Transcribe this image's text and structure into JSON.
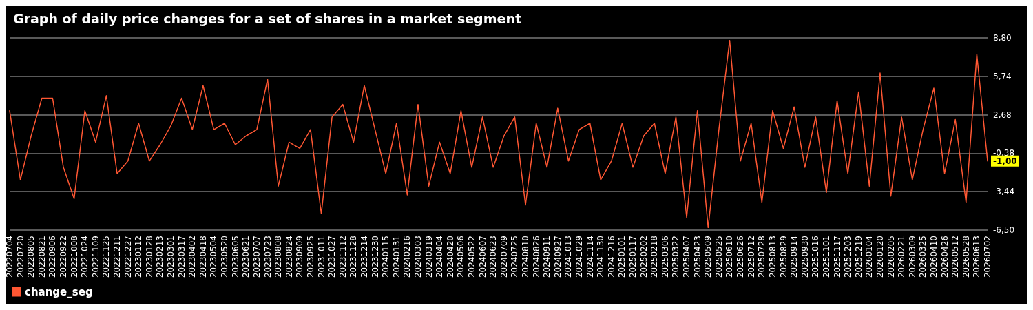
{
  "chart_data": {
    "type": "line",
    "title": "Graph of daily price changes for a set of shares in a market segment",
    "categories": [
      "20220704",
      "20220720",
      "20220805",
      "20220821",
      "20220906",
      "20220922",
      "20221008",
      "20221024",
      "20221109",
      "20221125",
      "20221211",
      "20221227",
      "20230112",
      "20230128",
      "20230213",
      "20230301",
      "20230317",
      "20230402",
      "20230418",
      "20230504",
      "20230520",
      "20230605",
      "20230621",
      "20230707",
      "20230723",
      "20230808",
      "20230824",
      "20230909",
      "20230925",
      "20231011",
      "20231027",
      "20231112",
      "20231128",
      "20231214",
      "20231230",
      "20240115",
      "20240131",
      "20240216",
      "20240303",
      "20240319",
      "20240404",
      "20240420",
      "20240506",
      "20240522",
      "20240607",
      "20240623",
      "20240709",
      "20240725",
      "20240810",
      "20240826",
      "20240911",
      "20240927",
      "20241013",
      "20241029",
      "20241114",
      "20241130",
      "20241216",
      "20250101",
      "20250117",
      "20250202",
      "20250218",
      "20250306",
      "20250322",
      "20250407",
      "20250423",
      "20250509",
      "20250525",
      "20250610",
      "20250626",
      "20250712",
      "20250728",
      "20250813",
      "20250829",
      "20250914",
      "20250930",
      "20251016",
      "20251101",
      "20251117",
      "20251203",
      "20251219",
      "20260104",
      "20260120",
      "20260205",
      "20260221",
      "20260309",
      "20260325",
      "20260410",
      "20260426",
      "20260512",
      "20260528",
      "20260613",
      "20260702"
    ],
    "series": [
      {
        "name": "change_seg",
        "color": "#ff5733",
        "values": [
          3.0,
          -2.5,
          1.0,
          4.0,
          4.0,
          -1.5,
          -4.0,
          3.0,
          0.5,
          4.2,
          -2.0,
          -1.0,
          2.0,
          -1.0,
          0.3,
          1.8,
          4.0,
          1.5,
          5.0,
          1.5,
          2.0,
          0.3,
          1.0,
          1.5,
          5.5,
          -3.0,
          0.5,
          0.0,
          1.5,
          -5.2,
          2.5,
          3.5,
          0.5,
          5.0,
          1.5,
          -2.0,
          2.0,
          -3.7,
          3.5,
          -3.0,
          0.5,
          -2.0,
          3.0,
          -1.5,
          2.5,
          -1.5,
          1.0,
          2.5,
          -4.5,
          2.0,
          -1.5,
          3.2,
          -1.0,
          1.5,
          2.0,
          -2.5,
          -1.0,
          2.0,
          -1.5,
          1.0,
          2.0,
          -2.0,
          2.5,
          -5.5,
          3.0,
          -6.3,
          1.5,
          8.6,
          -1.0,
          2.0,
          -4.3,
          3.0,
          0.0,
          3.3,
          -1.5,
          2.5,
          -3.5,
          3.8,
          -2.0,
          4.5,
          -3.0,
          6.0,
          -3.8,
          2.5,
          -2.5,
          1.5,
          4.8,
          -2.0,
          2.3,
          -4.3,
          7.5,
          -1.0
        ],
        "value_labels": [
          null,
          null,
          null,
          null,
          null,
          null,
          null,
          null,
          null,
          null,
          null,
          null,
          null,
          null,
          null,
          null,
          null,
          null,
          null,
          null,
          null,
          null,
          null,
          null,
          null,
          null,
          null,
          null,
          null,
          null,
          null,
          null,
          null,
          null,
          null,
          null,
          null,
          null,
          null,
          null,
          null,
          null,
          null,
          null,
          null,
          null,
          null,
          null,
          null,
          null,
          null,
          null,
          null,
          null,
          null,
          null,
          null,
          null,
          null,
          null,
          null,
          null,
          null,
          null,
          null,
          null,
          null,
          null,
          null,
          null,
          null,
          null,
          null,
          null,
          null,
          null,
          null,
          null,
          null,
          null,
          null,
          null,
          null,
          null,
          null,
          null,
          null,
          null,
          null,
          null,
          null,
          "-1,00"
        ]
      }
    ],
    "ylim": [
      -6.5,
      8.8
    ],
    "yticks": [
      {
        "value": -6.5,
        "label": "-6,50"
      },
      {
        "value": -3.44,
        "label": "-3,44"
      },
      {
        "value": -0.38,
        "label": "-0,38"
      },
      {
        "value": 2.68,
        "label": "2,68"
      },
      {
        "value": 5.74,
        "label": "5,74"
      },
      {
        "value": 8.8,
        "label": "8,80"
      }
    ],
    "grid": "y",
    "legend": "bottom left",
    "marker": "none",
    "line_style": "solid"
  }
}
